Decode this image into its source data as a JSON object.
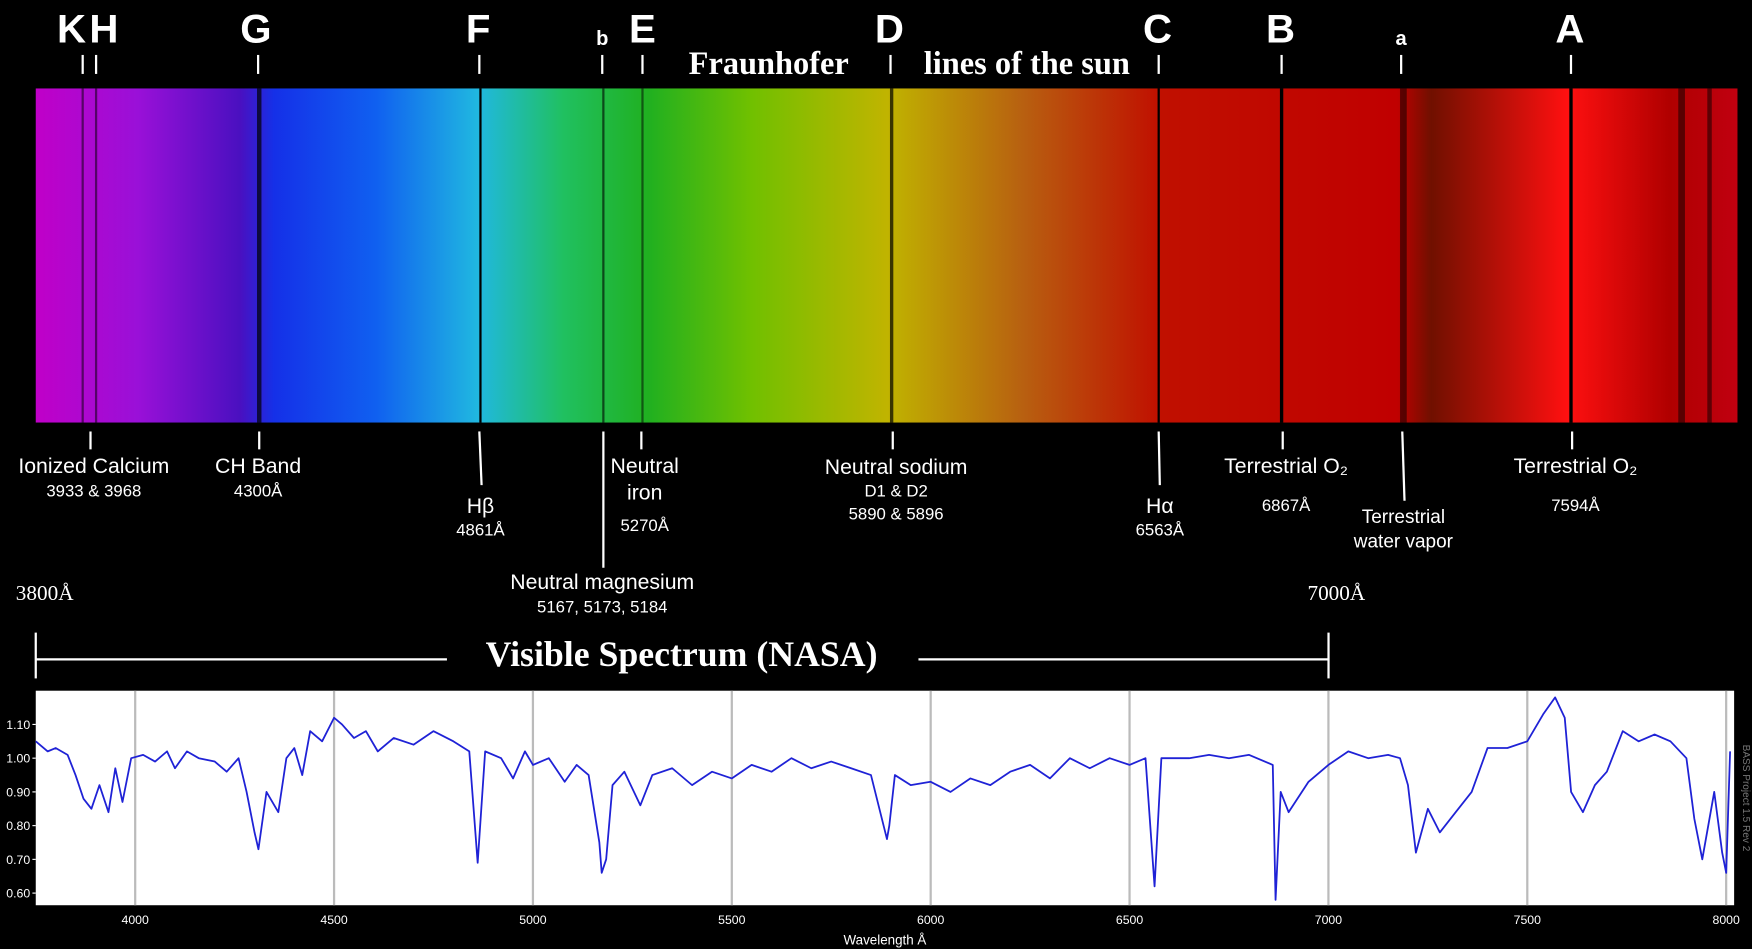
{
  "header": {
    "title_left": "Fraunhofer",
    "title_right": "lines of the sun"
  },
  "letters": [
    "K",
    "H",
    "G",
    "F",
    "b",
    "E",
    "D",
    "C",
    "B",
    "a",
    "A"
  ],
  "annotations": {
    "calcium": [
      "Ionized Calcium",
      "3933 & 3968"
    ],
    "ch_band": [
      "CH Band",
      "4300Å"
    ],
    "h_beta": [
      "Hβ",
      "4861Å"
    ],
    "iron": [
      "Neutral",
      "iron",
      "5270Å"
    ],
    "magnesium": [
      "Neutral magnesium",
      "5167, 5173, 5184"
    ],
    "sodium": [
      "Neutral sodium",
      "D1 & D2",
      "5890 & 5896"
    ],
    "h_alpha": [
      "Hα",
      "6563Å"
    ],
    "oxygen_b": [
      "Terrestrial O₂",
      "6867Å"
    ],
    "water": [
      "Terrestrial",
      "water vapor"
    ],
    "oxygen_a": [
      "Terrestrial O₂",
      "7594Å"
    ]
  },
  "visible_range": {
    "start": "3800Å",
    "end": "7000Å",
    "label": "Visible Spectrum (NASA)"
  },
  "chart_data": {
    "type": "line",
    "x_label": "Wavelength Å",
    "side_note": "BASS Project 1.5 Rev 2",
    "color": "#1f22d6",
    "grid": "x",
    "xlim": [
      3750,
      8020
    ],
    "ylim": [
      0.564,
      1.2
    ],
    "xticks": [
      4000,
      4500,
      5000,
      5500,
      6000,
      6500,
      7000,
      7500,
      8000
    ],
    "yticks": [
      {
        "value": 0.6,
        "label": "0.60"
      },
      {
        "value": 0.7,
        "label": "0.70"
      },
      {
        "value": 0.8,
        "label": "0.80"
      },
      {
        "value": 0.9,
        "label": "0.90"
      },
      {
        "value": 1.0,
        "label": "1.00"
      },
      {
        "value": 1.1,
        "label": "1.10"
      }
    ],
    "x": [
      3750,
      3780,
      3800,
      3830,
      3850,
      3870,
      3890,
      3910,
      3933,
      3950,
      3968,
      3990,
      4020,
      4050,
      4080,
      4100,
      4130,
      4160,
      4200,
      4230,
      4260,
      4280,
      4300,
      4310,
      4330,
      4360,
      4380,
      4400,
      4420,
      4440,
      4470,
      4500,
      4520,
      4550,
      4580,
      4610,
      4650,
      4700,
      4750,
      4800,
      4840,
      4861,
      4880,
      4920,
      4950,
      4980,
      5000,
      5040,
      5080,
      5110,
      5140,
      5167,
      5173,
      5184,
      5200,
      5230,
      5270,
      5300,
      5350,
      5400,
      5450,
      5500,
      5550,
      5600,
      5650,
      5700,
      5750,
      5800,
      5850,
      5890,
      5896,
      5910,
      5950,
      6000,
      6050,
      6100,
      6150,
      6200,
      6250,
      6300,
      6350,
      6400,
      6450,
      6500,
      6540,
      6563,
      6580,
      6650,
      6700,
      6750,
      6800,
      6860,
      6867,
      6880,
      6900,
      6950,
      7000,
      7050,
      7100,
      7150,
      7180,
      7200,
      7220,
      7250,
      7280,
      7320,
      7360,
      7400,
      7450,
      7500,
      7540,
      7570,
      7594,
      7610,
      7640,
      7670,
      7700,
      7740,
      7780,
      7820,
      7860,
      7900,
      7920,
      7940,
      7970,
      7990,
      8000,
      8010
    ],
    "values": [
      1.05,
      1.02,
      1.03,
      1.01,
      0.95,
      0.88,
      0.85,
      0.92,
      0.84,
      0.97,
      0.87,
      1.0,
      1.01,
      0.99,
      1.02,
      0.97,
      1.02,
      1.0,
      0.99,
      0.96,
      1.0,
      0.9,
      0.78,
      0.73,
      0.9,
      0.84,
      1.0,
      1.03,
      0.95,
      1.08,
      1.05,
      1.12,
      1.1,
      1.06,
      1.08,
      1.02,
      1.06,
      1.04,
      1.08,
      1.05,
      1.02,
      0.69,
      1.02,
      1.0,
      0.94,
      1.02,
      0.98,
      1.0,
      0.93,
      0.98,
      0.95,
      0.75,
      0.66,
      0.7,
      0.92,
      0.96,
      0.86,
      0.95,
      0.97,
      0.92,
      0.96,
      0.94,
      0.98,
      0.96,
      1.0,
      0.97,
      0.99,
      0.97,
      0.95,
      0.76,
      0.8,
      0.95,
      0.92,
      0.93,
      0.9,
      0.94,
      0.92,
      0.96,
      0.98,
      0.94,
      1.0,
      0.97,
      1.0,
      0.98,
      1.0,
      0.62,
      1.0,
      1.0,
      1.01,
      1.0,
      1.01,
      0.98,
      0.58,
      0.9,
      0.84,
      0.93,
      0.98,
      1.02,
      1.0,
      1.01,
      1.0,
      0.92,
      0.72,
      0.85,
      0.78,
      0.84,
      0.9,
      1.03,
      1.03,
      1.05,
      1.13,
      1.18,
      1.12,
      0.9,
      0.84,
      0.92,
      0.96,
      1.08,
      1.05,
      1.07,
      1.05,
      1.0,
      0.82,
      0.7,
      0.9,
      0.72,
      0.66,
      1.02
    ]
  }
}
